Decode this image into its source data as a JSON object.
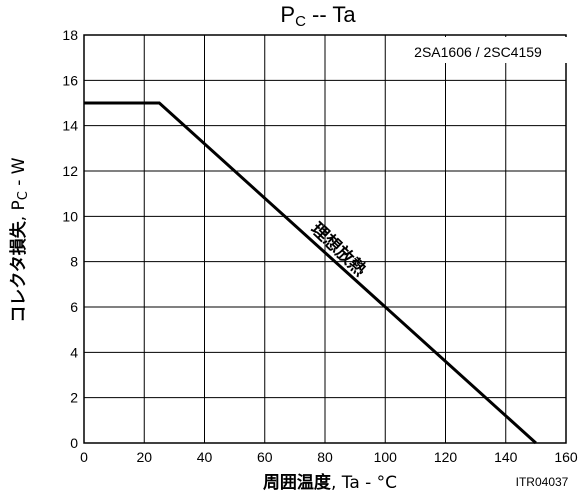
{
  "chart_data": {
    "type": "line",
    "title_main": "P",
    "title_sub": "C",
    "title_rest": "  --  Ta",
    "xlabel_bold": "周囲温度",
    "xlabel_rest": ", Ta  -  °C",
    "ylabel_bold": "コレクタ損失",
    "ylabel_rest_1": ", P",
    "ylabel_sub": "C",
    "ylabel_rest_2": "  -  W",
    "model_label": "2SA1606 / 2SC4159",
    "code_label": "ITR04037",
    "annotation": "理想放熱",
    "xlim": [
      0,
      160
    ],
    "ylim": [
      0,
      18
    ],
    "x_ticks": [
      0,
      20,
      40,
      60,
      80,
      100,
      120,
      140,
      160
    ],
    "y_ticks": [
      0,
      2,
      4,
      6,
      8,
      10,
      12,
      14,
      16,
      18
    ],
    "grid": true,
    "series": [
      {
        "x": [
          0,
          25,
          150
        ],
        "y": [
          15,
          15,
          0
        ]
      }
    ]
  }
}
